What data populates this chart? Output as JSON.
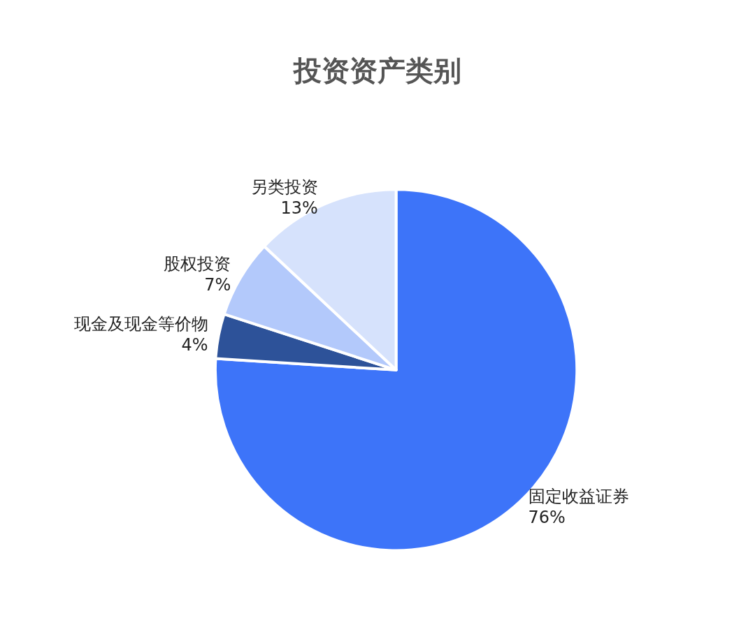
{
  "chart_data": {
    "type": "pie",
    "title": "投资资产类别",
    "categories": [
      "固定收益证券",
      "现金及现金等价物",
      "股权投资",
      "另类投资"
    ],
    "values": [
      76,
      4,
      7,
      13
    ],
    "value_labels": [
      "76%",
      "4%",
      "7%",
      "13%"
    ],
    "colors": [
      "#3d74f9",
      "#2d5299",
      "#b3c9fb",
      "#d6e2fc"
    ],
    "legend": false
  }
}
